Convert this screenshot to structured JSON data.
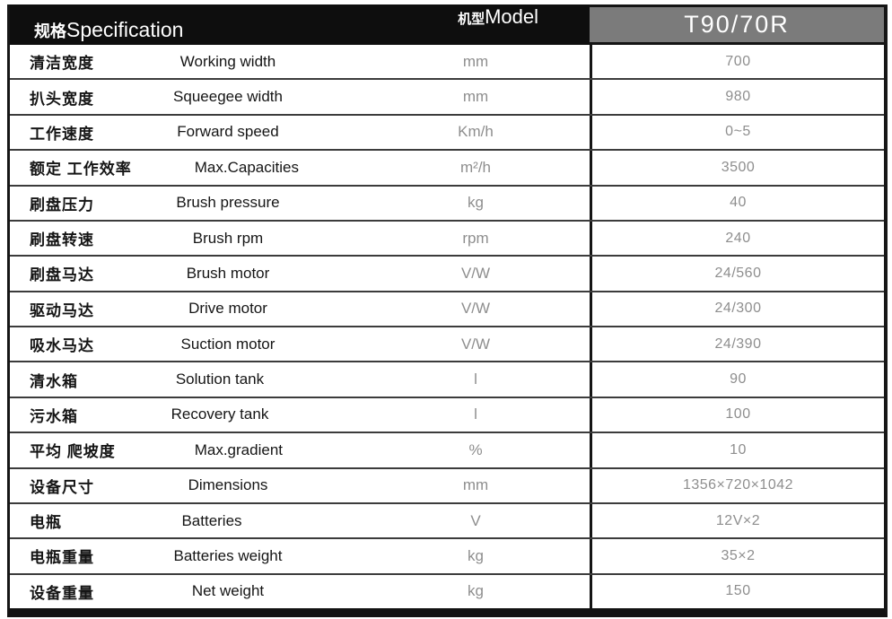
{
  "header": {
    "spec_label_cn": "规格",
    "spec_label_en": "Specification",
    "model_label_cn": "机型",
    "model_label_en": "Model",
    "model_value": "T90/70R"
  },
  "rows": [
    {
      "cn": "清洁宽度",
      "en": "Working width",
      "unit": "mm",
      "value": "700"
    },
    {
      "cn": "扒头宽度",
      "en": "Squeegee width",
      "unit": "mm",
      "value": "980"
    },
    {
      "cn": "工作速度",
      "en": "Forward speed",
      "unit": "Km/h",
      "value": "0~5"
    },
    {
      "cn": "额定 工作效率",
      "en": "Max.Capacities",
      "unit": "m²/h",
      "value": "3500"
    },
    {
      "cn": "刷盘压力",
      "en": "Brush pressure",
      "unit": "kg",
      "value": "40"
    },
    {
      "cn": "刷盘转速",
      "en": "Brush rpm",
      "unit": "rpm",
      "value": "240"
    },
    {
      "cn": "刷盘马达",
      "en": "Brush motor",
      "unit": "V/W",
      "value": "24/560"
    },
    {
      "cn": "驱动马达",
      "en": "Drive motor",
      "unit": "V/W",
      "value": "24/300"
    },
    {
      "cn": "吸水马达",
      "en": "Suction motor",
      "unit": "V/W",
      "value": "24/390"
    },
    {
      "cn": "清水箱",
      "en": "Solution tank",
      "unit": "l",
      "value": "90"
    },
    {
      "cn": "污水箱",
      "en": "Recovery tank",
      "unit": "l",
      "value": "100"
    },
    {
      "cn": "平均 爬坡度",
      "en": "Max.gradient",
      "unit": "%",
      "value": "10"
    },
    {
      "cn": "设备尺寸",
      "en": "Dimensions",
      "unit": "mm",
      "value": "1356×720×1042"
    },
    {
      "cn": "电瓶",
      "en": "Batteries",
      "unit": "V",
      "value": "12V×2"
    },
    {
      "cn": "电瓶重量",
      "en": "Batteries weight",
      "unit": "kg",
      "value": "35×2"
    },
    {
      "cn": "设备重量",
      "en": "Net weight",
      "unit": "kg",
      "value": "150"
    }
  ],
  "colors": {
    "header_black": "#0e0e0e",
    "model_header_gray": "#7b7b7b",
    "value_text_gray": "#8e8e8e",
    "label_text": "#151515"
  }
}
